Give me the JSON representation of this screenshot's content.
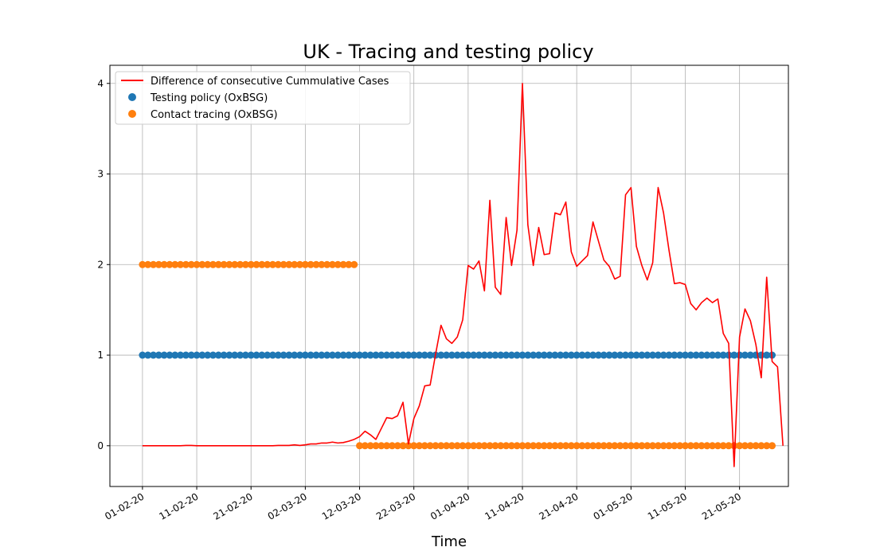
{
  "chart_data": {
    "type": "line",
    "title": "UK - Tracing and testing policy",
    "xlabel": "Time",
    "ylabel": "",
    "ylim": [
      -0.45,
      4.2
    ],
    "xlim_days": [
      -6,
      119
    ],
    "grid": true,
    "legend_position": "top-left",
    "x_tick_labels": [
      "01-02-20",
      "11-02-20",
      "21-02-20",
      "02-03-20",
      "12-03-20",
      "22-03-20",
      "01-04-20",
      "11-04-20",
      "21-04-20",
      "01-05-20",
      "11-05-20",
      "21-05-20"
    ],
    "x_tick_days": [
      0,
      10,
      20,
      30,
      40,
      50,
      60,
      70,
      80,
      90,
      100,
      110
    ],
    "y_ticks": [
      0,
      1,
      2,
      3,
      4
    ],
    "series": [
      {
        "name": "Difference of consecutive Cummulative Cases",
        "kind": "line",
        "color": "#ff0000",
        "x_start": "01-02-20",
        "values": [
          0,
          0,
          0,
          0,
          0,
          0,
          0,
          0,
          0.003,
          0.003,
          0,
          0,
          0,
          0,
          0,
          0,
          0,
          0,
          0,
          0,
          0,
          0,
          0,
          0,
          0,
          0.003,
          0.003,
          0.003,
          0.01,
          0.003,
          0.01,
          0.02,
          0.02,
          0.03,
          0.03,
          0.04,
          0.03,
          0.035,
          0.05,
          0.07,
          0.1,
          0.16,
          0.12,
          0.07,
          0.19,
          0.31,
          0.3,
          0.33,
          0.48,
          0.02,
          0.3,
          0.44,
          0.66,
          0.67,
          1.01,
          1.33,
          1.18,
          1.13,
          1.2,
          1.39,
          1.99,
          1.95,
          2.04,
          1.71,
          2.71,
          1.75,
          1.67,
          2.52,
          1.99,
          2.38,
          4.0,
          2.44,
          1.99,
          2.41,
          2.11,
          2.12,
          2.57,
          2.55,
          2.69,
          2.14,
          1.98,
          2.04,
          2.1,
          2.47,
          2.26,
          2.05,
          1.98,
          1.84,
          1.87,
          2.77,
          2.85,
          2.2,
          1.99,
          1.83,
          2.02,
          2.85,
          2.57,
          2.16,
          1.79,
          1.8,
          1.78,
          1.57,
          1.5,
          1.58,
          1.63,
          1.58,
          1.62,
          1.24,
          1.13,
          -0.23,
          1.2,
          1.51,
          1.38,
          1.12,
          0.75,
          1.86,
          0.93,
          0.87,
          0.0
        ]
      },
      {
        "name": "Testing policy (OxBSG)",
        "kind": "points",
        "color": "#1f77b4",
        "day_range": [
          0,
          116
        ],
        "value": 1
      },
      {
        "name": "Contact tracing (OxBSG)",
        "kind": "points",
        "color": "#ff7f0e",
        "segments": [
          {
            "day_range": [
              0,
              39
            ],
            "value": 2
          },
          {
            "day_range": [
              40,
              116
            ],
            "value": 0
          }
        ]
      }
    ]
  }
}
